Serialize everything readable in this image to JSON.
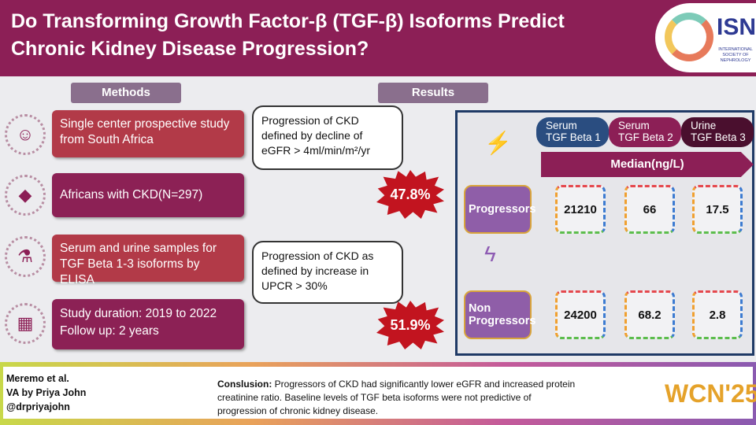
{
  "header": {
    "title": "Do Transforming Growth Factor-β (TGF-β) Isoforms Predict Chronic Kidney Disease Progression?",
    "logo_text": "ISN",
    "logo_subtitle": "INTERNATIONAL SOCIETY OF NEPHROLOGY"
  },
  "methods": {
    "label": "Methods",
    "items": [
      {
        "text": "Single center prospective study from South Africa",
        "icon": "hand-person-icon",
        "color": "#b23a48"
      },
      {
        "text": "Africans with CKD(N=297)",
        "icon": "africa-map-icon",
        "color": "#8c2155"
      },
      {
        "text": "Serum and urine samples for TGF Beta 1-3 isoforms by ELISA",
        "icon": "sample-tube-icon",
        "color": "#b23a48"
      },
      {
        "text": "Study duration: 2019 to 2022",
        "text2": "Follow up: 2 years",
        "icon": "calendar-icon",
        "color": "#8c2155"
      }
    ]
  },
  "results": {
    "label": "Results",
    "outcomes": [
      {
        "text": "Progression of CKD defined by decline of eGFR > 4ml/min/m²/yr",
        "percent": "47.8%"
      },
      {
        "text": "Progression of CKD as defined by increase in UPCR > 30%",
        "percent": "51.9%"
      }
    ],
    "columns": [
      {
        "l1": "Serum",
        "l2": "TGF Beta 1",
        "color": "#2a4d80"
      },
      {
        "l1": "Serum",
        "l2": "TGF Beta 2",
        "color": "#8c1f56"
      },
      {
        "l1": "Urine",
        "l2": "TGF Beta 3",
        "color": "#4a0f2e"
      }
    ],
    "median_label": "Median(ng/L)",
    "rows": [
      {
        "label": "Progressors",
        "values": [
          "21210",
          "66",
          "17.5"
        ]
      },
      {
        "label": "Non Progressors",
        "values": [
          "24200",
          "68.2",
          "2.8"
        ]
      }
    ]
  },
  "footer": {
    "credits": [
      "Meremo et al.",
      "VA by Priya John",
      "@drpriyajohn"
    ],
    "conclusion_label": "Conslusion:",
    "conclusion": " Progressors of CKD had significantly lower eGFR and increased protein creatinine ratio. Baseline levels of TGF beta isoforms were not predictive of progression of chronic kidney disease.",
    "event_logo": "WCN'25"
  }
}
